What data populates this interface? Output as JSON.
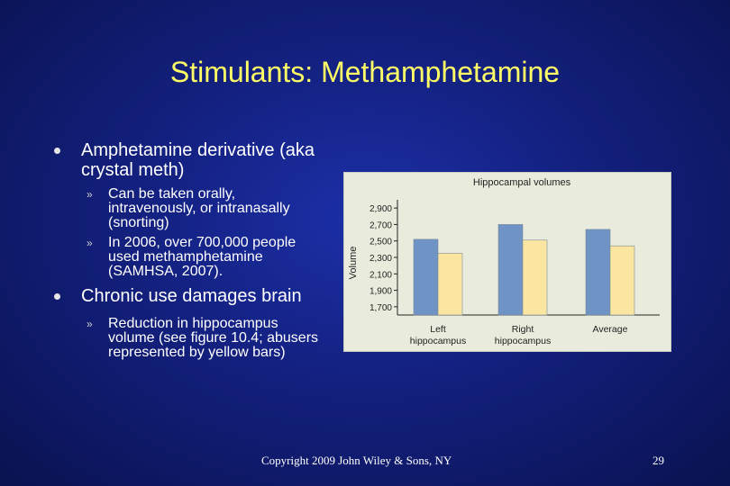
{
  "slide": {
    "title": "Stimulants: Methamphetamine",
    "bullets": [
      {
        "text": "Amphetamine derivative (aka crystal meth)",
        "sub": [
          "Can be taken orally, intravenously, or intranasally (snorting)",
          "In 2006, over 700,000 people used methamphetamine (SAMHSA, 2007)."
        ]
      },
      {
        "text": "Chronic use damages brain",
        "sub": [
          "Reduction in hippocampus volume (see figure 10.4; abusers represented by yellow bars)"
        ]
      }
    ],
    "sub_marker": "»",
    "footer": "Copyright 2009 John Wiley & Sons, NY",
    "page_number": "29"
  },
  "colors": {
    "control_bar": "#6f93c4",
    "abuser_bar": "#fae6a0",
    "chart_bg": "#e9ecdc",
    "title": "#ffff66"
  },
  "chart_data": {
    "type": "bar",
    "title": "Hippocampal volumes",
    "ylabel": "Volume",
    "categories": [
      "Left hippocampus",
      "Right hippocampus",
      "Average"
    ],
    "category_lines": [
      [
        "Left",
        "hippocampus"
      ],
      [
        "Right",
        "hippocampus"
      ],
      [
        "Average"
      ]
    ],
    "series": [
      {
        "values": [
          2520,
          2700,
          2640
        ]
      },
      {
        "values": [
          2350,
          2510,
          2440
        ]
      }
    ],
    "ylim": [
      1600,
      3000
    ],
    "yticks": [
      1700,
      1900,
      2100,
      2300,
      2500,
      2700,
      2900
    ],
    "ytick_labels": [
      "1,700",
      "1,900",
      "2,100",
      "2,300",
      "2,500",
      "2,700",
      "2,900"
    ],
    "grid": false,
    "legend": "none"
  }
}
